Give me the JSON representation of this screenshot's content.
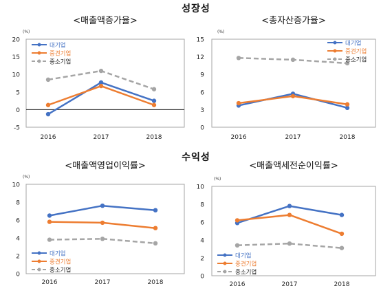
{
  "section_titles": [
    "성장성",
    "수익성"
  ],
  "chart_data": [
    {
      "type": "line",
      "title": "<매출액증가율>",
      "unit": "(%)",
      "categories": [
        "2016",
        "2017",
        "2018"
      ],
      "ylim": [
        -5,
        20
      ],
      "yticks": [
        "-5",
        "0",
        "5",
        "10",
        "15",
        "20"
      ],
      "zero_line": true,
      "legend_position": "top-left",
      "series": [
        {
          "name": "대기업",
          "values": [
            -1.3,
            7.7,
            2.5
          ],
          "color": "#4472c4",
          "dash": false
        },
        {
          "name": "중견기업",
          "values": [
            1.3,
            6.7,
            1.3
          ],
          "color": "#ed7d31",
          "dash": false
        },
        {
          "name": "중소기업",
          "values": [
            8.5,
            11.0,
            5.8
          ],
          "color": "#a5a5a5",
          "dash": true
        }
      ]
    },
    {
      "type": "line",
      "title": "<총자산증가율>",
      "unit": "(%)",
      "categories": [
        "2016",
        "2017",
        "2018"
      ],
      "ylim": [
        0,
        15
      ],
      "yticks": [
        "0",
        "3",
        "6",
        "9",
        "12",
        "15"
      ],
      "zero_line": false,
      "legend_position": "top-right",
      "series": [
        {
          "name": "대기업",
          "values": [
            3.7,
            5.7,
            3.3
          ],
          "color": "#4472c4",
          "dash": false
        },
        {
          "name": "중견기업",
          "values": [
            4.1,
            5.3,
            3.9
          ],
          "color": "#ed7d31",
          "dash": false
        },
        {
          "name": "중소기업",
          "values": [
            11.8,
            11.5,
            10.9
          ],
          "color": "#a5a5a5",
          "dash": true
        }
      ]
    },
    {
      "type": "line",
      "title": "<매출액영업이익률>",
      "unit": "(%)",
      "categories": [
        "2016",
        "2017",
        "2018"
      ],
      "ylim": [
        0,
        10
      ],
      "yticks": [
        "0",
        "2",
        "4",
        "6",
        "8",
        "10"
      ],
      "zero_line": false,
      "legend_position": "bottom-left",
      "series": [
        {
          "name": "대기업",
          "values": [
            6.5,
            7.6,
            7.1
          ],
          "color": "#4472c4",
          "dash": false
        },
        {
          "name": "중견기업",
          "values": [
            5.8,
            5.7,
            5.1
          ],
          "color": "#ed7d31",
          "dash": false
        },
        {
          "name": "중소기업",
          "values": [
            3.8,
            3.9,
            3.4
          ],
          "color": "#a5a5a5",
          "dash": true
        }
      ]
    },
    {
      "type": "line",
      "title": "<매출액세전순이익률>",
      "unit": "(%)",
      "categories": [
        "2016",
        "2017",
        "2018"
      ],
      "ylim": [
        0,
        10
      ],
      "yticks": [
        "0",
        "2",
        "4",
        "6",
        "8",
        "10"
      ],
      "zero_line": false,
      "legend_position": "bottom-left",
      "series": [
        {
          "name": "대기업",
          "values": [
            5.9,
            7.8,
            6.8
          ],
          "color": "#4472c4",
          "dash": false
        },
        {
          "name": "중견기업",
          "values": [
            6.2,
            6.8,
            4.7
          ],
          "color": "#ed7d31",
          "dash": false
        },
        {
          "name": "중소기업",
          "values": [
            3.4,
            3.6,
            3.1
          ],
          "color": "#a5a5a5",
          "dash": true
        }
      ]
    }
  ]
}
